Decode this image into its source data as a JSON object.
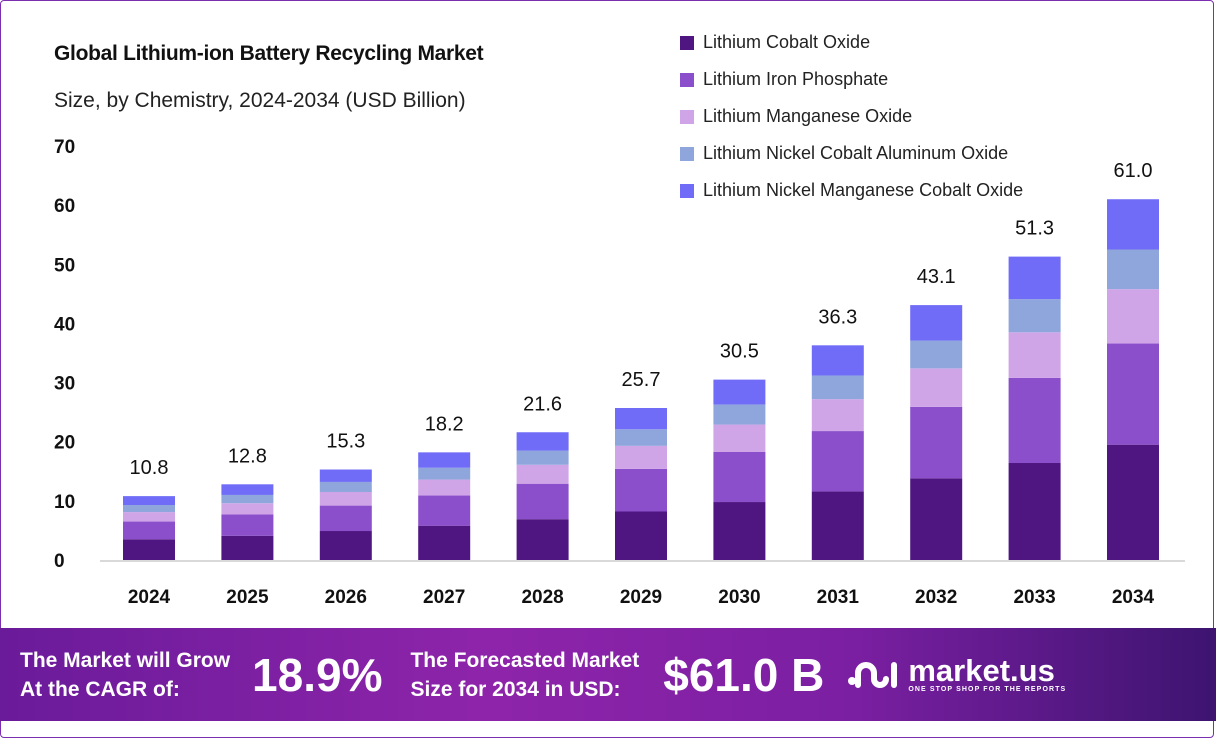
{
  "chart_data": {
    "type": "bar",
    "stacked": true,
    "title": "Global Lithium-ion Battery Recycling Market",
    "subtitle": "Size, by Chemistry, 2024-2034 (USD Billion)",
    "xlabel": "",
    "ylabel": "",
    "ylim": [
      0,
      70
    ],
    "yticks": [
      0,
      10,
      20,
      30,
      40,
      50,
      60,
      70
    ],
    "grid": false,
    "legend_placement": "top-right",
    "categories": [
      "2024",
      "2025",
      "2026",
      "2027",
      "2028",
      "2029",
      "2030",
      "2031",
      "2032",
      "2033",
      "2034"
    ],
    "totals": [
      "10.8",
      "12.8",
      "15.3",
      "18.2",
      "21.6",
      "25.7",
      "30.5",
      "36.3",
      "43.1",
      "51.3",
      "61.0"
    ],
    "series": [
      {
        "name": "Lithium Cobalt Oxide",
        "color": "#4f1681",
        "values": [
          3.5,
          4.1,
          4.9,
          5.8,
          6.9,
          8.2,
          9.8,
          11.6,
          13.8,
          16.4,
          19.5
        ]
      },
      {
        "name": "Lithium Iron Phosphate",
        "color": "#8b4fcc",
        "values": [
          3.0,
          3.6,
          4.3,
          5.1,
          6.0,
          7.2,
          8.5,
          10.2,
          12.1,
          14.4,
          17.1
        ]
      },
      {
        "name": "Lithium Manganese Oxide",
        "color": "#d0a5e8",
        "values": [
          1.6,
          1.9,
          2.3,
          2.7,
          3.2,
          3.9,
          4.6,
          5.4,
          6.5,
          7.7,
          9.2
        ]
      },
      {
        "name": "Lithium Nickel Cobalt Aluminum Oxide",
        "color": "#8fa6dc",
        "values": [
          1.2,
          1.4,
          1.7,
          2.0,
          2.4,
          2.8,
          3.4,
          4.0,
          4.7,
          5.6,
          6.7
        ]
      },
      {
        "name": "Lithium Nickel Manganese Cobalt Oxide",
        "color": "#716cf8",
        "values": [
          1.5,
          1.8,
          2.1,
          2.6,
          3.1,
          3.6,
          4.2,
          5.1,
          6.0,
          7.2,
          8.5
        ]
      }
    ]
  },
  "banner": {
    "cagr_label_1": "The Market will Grow",
    "cagr_label_2": "At the CAGR of:",
    "cagr_value": "18.9%",
    "forecast_label_1": "The Forecasted Market",
    "forecast_label_2": "Size for 2034 in USD:",
    "forecast_value": "$61.0 B",
    "logo_text": "market.us",
    "logo_tagline": "ONE STOP SHOP FOR THE REPORTS"
  }
}
